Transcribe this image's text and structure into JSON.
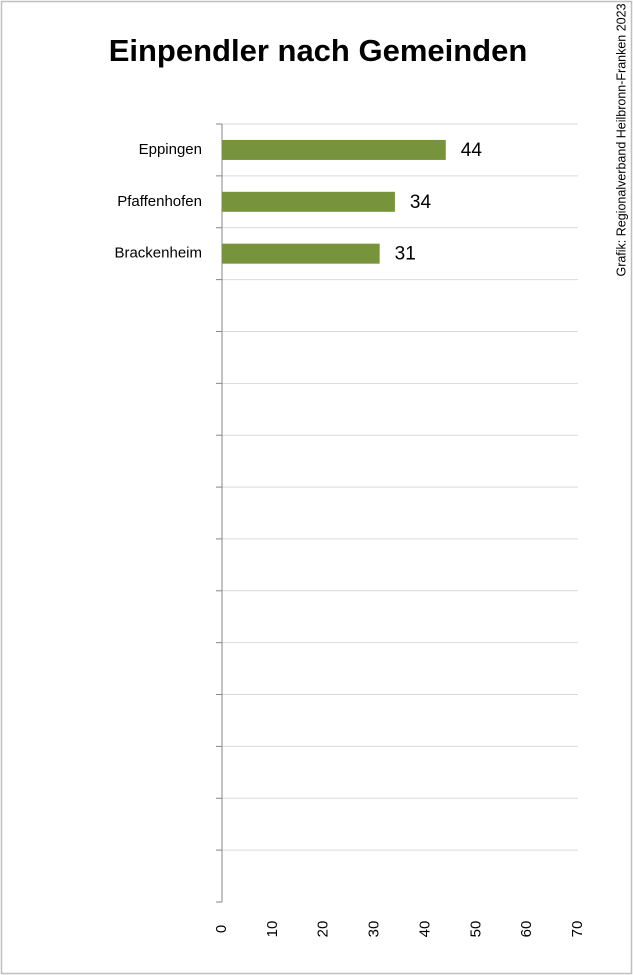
{
  "chart_data": {
    "type": "barh",
    "title": "Einpendler nach Gemeinden",
    "source": "Grafik: Regionalverband Heilbronn-Franken 2023",
    "categories": [
      "Eppingen",
      "Pfaffenhofen",
      "Brackenheim",
      null,
      null,
      null,
      null,
      null,
      null,
      null,
      null,
      null,
      null,
      null,
      null
    ],
    "values": [
      44,
      34,
      31,
      null,
      null,
      null,
      null,
      null,
      null,
      null,
      null,
      null,
      null,
      null,
      null
    ],
    "color": "#77933c",
    "xlim": [
      0,
      70
    ],
    "xticks": [
      0,
      10,
      20,
      30,
      40,
      50,
      60,
      70
    ],
    "grid": true
  }
}
